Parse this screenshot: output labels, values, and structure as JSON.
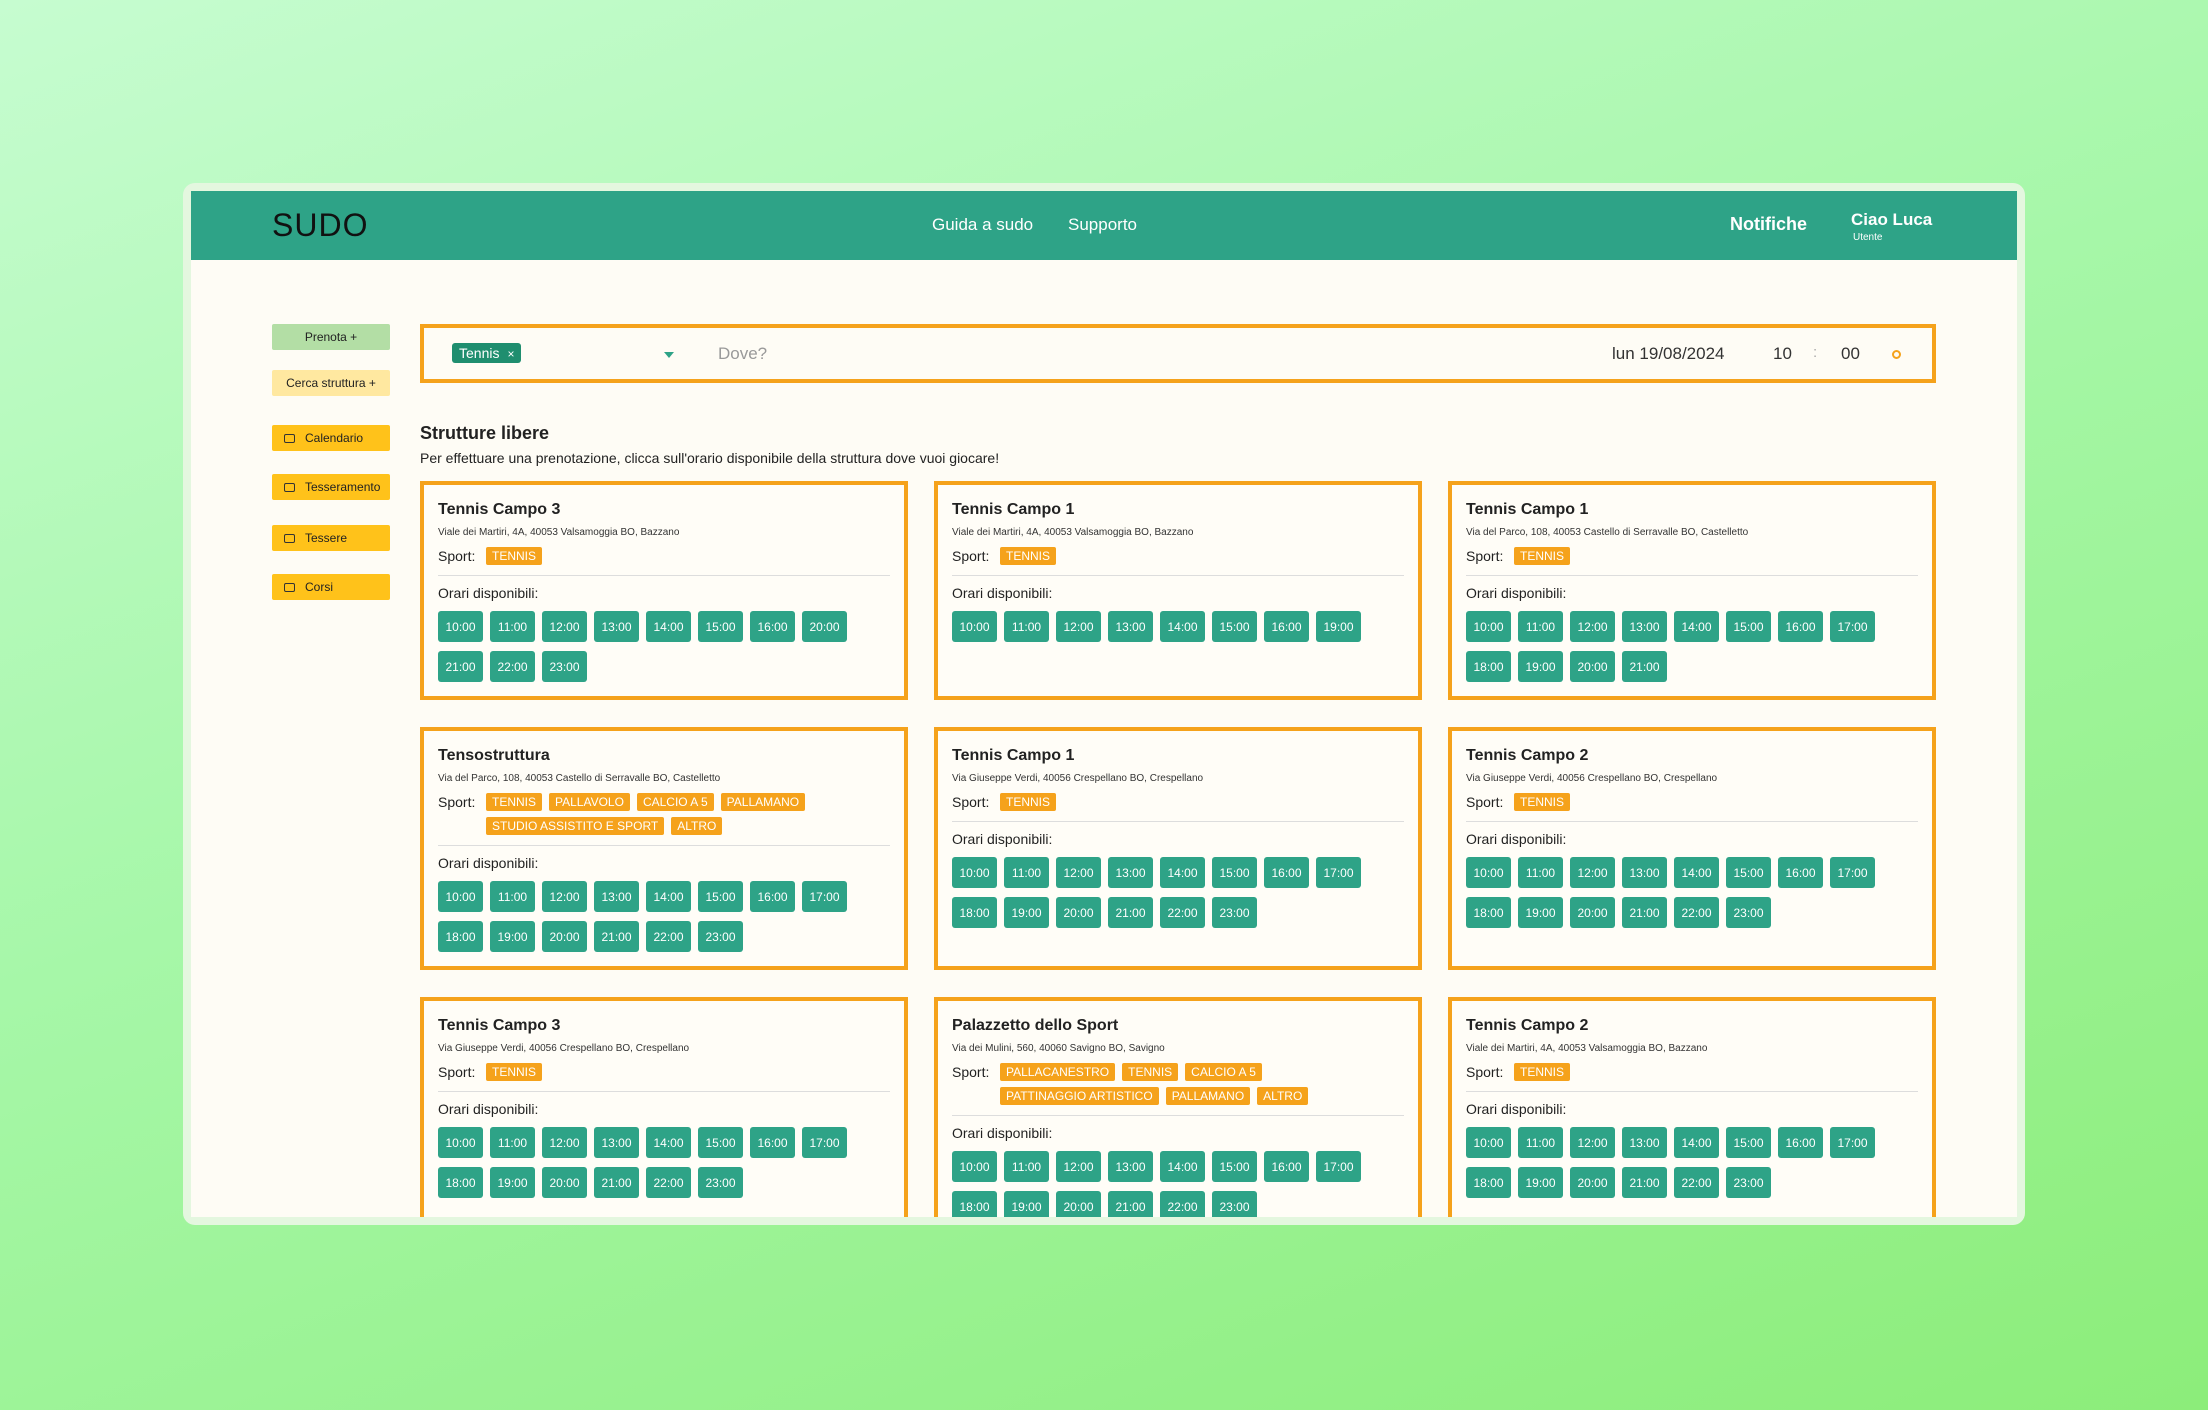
{
  "header": {
    "logo": "SUDO",
    "nav": [
      "Guida a sudo",
      "Supporto"
    ],
    "notifications": "Notifiche",
    "greeting": "Ciao Luca",
    "role": "Utente"
  },
  "sidebar": {
    "top": [
      "Prenota +",
      "Cerca struttura +"
    ],
    "menu": [
      "Calendario",
      "Tesseramento",
      "Tessere",
      "Corsi"
    ]
  },
  "search": {
    "sport_tag": "Tennis",
    "remove": "×",
    "where_placeholder": "Dove?",
    "date": "lun 19/08/2024",
    "hour": "10",
    "separator": ":",
    "minute": "00"
  },
  "results": {
    "title": "Strutture libere",
    "subtitle": "Per effettuare una prenotazione, clicca sull'orario disponibile della struttura dove vuoi giocare!",
    "sport_label": "Sport:",
    "times_label": "Orari disponibili:",
    "cards": [
      {
        "name": "Tennis Campo 3",
        "address": "Viale dei Martiri, 4A, 40053 Valsamoggia BO, Bazzano",
        "sports": [
          "TENNIS"
        ],
        "times": [
          "10:00",
          "11:00",
          "12:00",
          "13:00",
          "14:00",
          "15:00",
          "16:00",
          "20:00",
          "21:00",
          "22:00",
          "23:00"
        ]
      },
      {
        "name": "Tennis Campo 1",
        "address": "Viale dei Martiri, 4A, 40053 Valsamoggia BO, Bazzano",
        "sports": [
          "TENNIS"
        ],
        "times": [
          "10:00",
          "11:00",
          "12:00",
          "13:00",
          "14:00",
          "15:00",
          "16:00",
          "19:00"
        ]
      },
      {
        "name": "Tennis Campo 1",
        "address": "Via del Parco, 108, 40053 Castello di Serravalle BO, Castelletto",
        "sports": [
          "TENNIS"
        ],
        "times": [
          "10:00",
          "11:00",
          "12:00",
          "13:00",
          "14:00",
          "15:00",
          "16:00",
          "17:00",
          "18:00",
          "19:00",
          "20:00",
          "21:00"
        ]
      },
      {
        "name": "Tensostruttura",
        "address": "Via del Parco, 108, 40053 Castello di Serravalle BO, Castelletto",
        "sports": [
          "TENNIS",
          "PALLAVOLO",
          "CALCIO A 5",
          "PALLAMANO",
          "STUDIO ASSISTITO E SPORT",
          "ALTRO"
        ],
        "times": [
          "10:00",
          "11:00",
          "12:00",
          "13:00",
          "14:00",
          "15:00",
          "16:00",
          "17:00",
          "18:00",
          "19:00",
          "20:00",
          "21:00",
          "22:00",
          "23:00"
        ]
      },
      {
        "name": "Tennis Campo 1",
        "address": "Via Giuseppe Verdi, 40056 Crespellano BO, Crespellano",
        "sports": [
          "TENNIS"
        ],
        "times": [
          "10:00",
          "11:00",
          "12:00",
          "13:00",
          "14:00",
          "15:00",
          "16:00",
          "17:00",
          "18:00",
          "19:00",
          "20:00",
          "21:00",
          "22:00",
          "23:00"
        ]
      },
      {
        "name": "Tennis Campo 2",
        "address": "Via Giuseppe Verdi, 40056 Crespellano BO, Crespellano",
        "sports": [
          "TENNIS"
        ],
        "times": [
          "10:00",
          "11:00",
          "12:00",
          "13:00",
          "14:00",
          "15:00",
          "16:00",
          "17:00",
          "18:00",
          "19:00",
          "20:00",
          "21:00",
          "22:00",
          "23:00"
        ]
      },
      {
        "name": "Tennis Campo 3",
        "address": "Via Giuseppe Verdi, 40056 Crespellano BO, Crespellano",
        "sports": [
          "TENNIS"
        ],
        "times": [
          "10:00",
          "11:00",
          "12:00",
          "13:00",
          "14:00",
          "15:00",
          "16:00",
          "17:00",
          "18:00",
          "19:00",
          "20:00",
          "21:00",
          "22:00",
          "23:00"
        ]
      },
      {
        "name": "Palazzetto dello Sport",
        "address": "Via dei Mulini, 560, 40060 Savigno BO, Savigno",
        "sports": [
          "PALLACANESTRO",
          "TENNIS",
          "CALCIO A 5",
          "PATTINAGGIO ARTISTICO",
          "PALLAMANO",
          "ALTRO"
        ],
        "times": [
          "10:00",
          "11:00",
          "12:00",
          "13:00",
          "14:00",
          "15:00",
          "16:00",
          "17:00",
          "18:00",
          "19:00",
          "20:00",
          "21:00",
          "22:00",
          "23:00"
        ]
      },
      {
        "name": "Tennis Campo 2",
        "address": "Viale dei Martiri, 4A, 40053 Valsamoggia BO, Bazzano",
        "sports": [
          "TENNIS"
        ],
        "times": [
          "10:00",
          "11:00",
          "12:00",
          "13:00",
          "14:00",
          "15:00",
          "16:00",
          "17:00",
          "18:00",
          "19:00",
          "20:00",
          "21:00",
          "22:00",
          "23:00"
        ]
      }
    ]
  }
}
